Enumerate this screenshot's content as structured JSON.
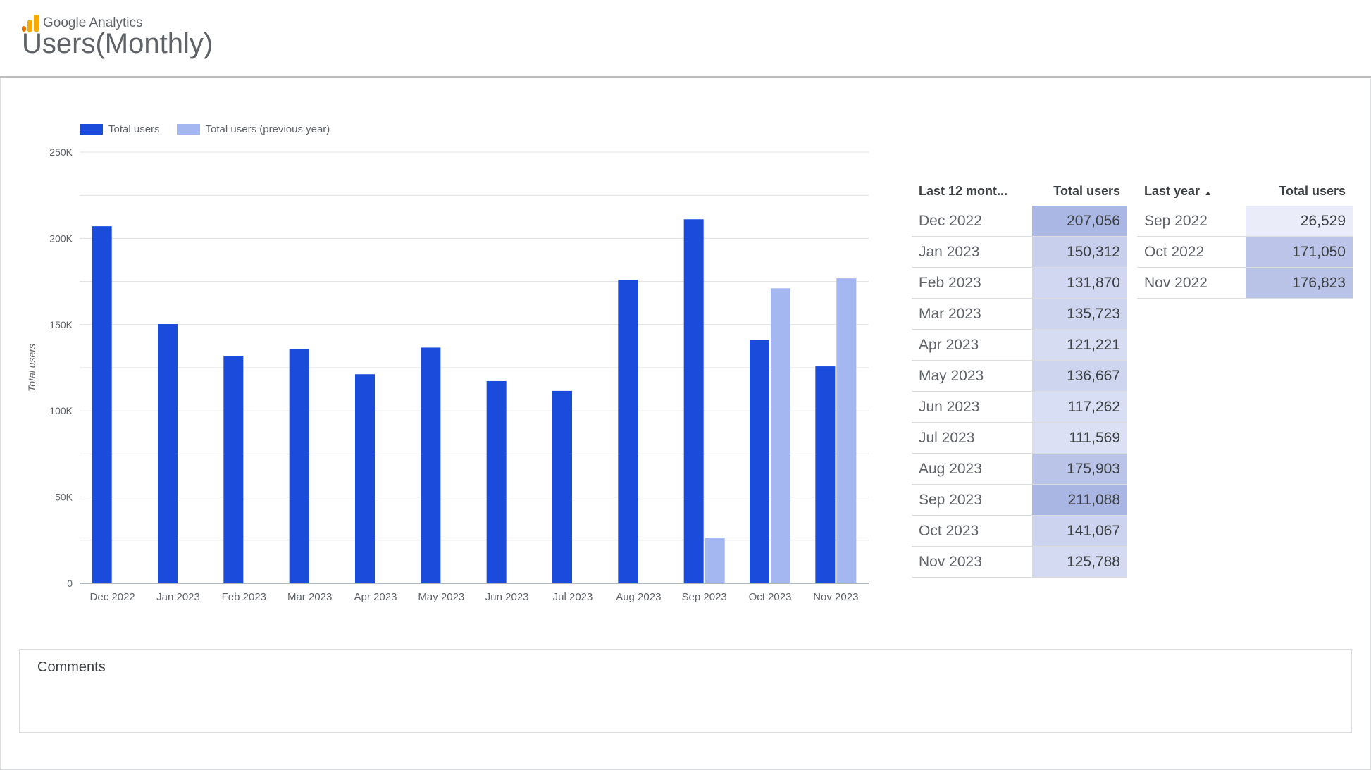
{
  "header": {
    "brand": "Google Analytics",
    "title": "Users(Monthly)"
  },
  "chart_data": {
    "type": "bar",
    "categories": [
      "Dec 2022",
      "Jan 2023",
      "Feb 2023",
      "Mar 2023",
      "Apr 2023",
      "May 2023",
      "Jun 2023",
      "Jul 2023",
      "Aug 2023",
      "Sep 2023",
      "Oct 2023",
      "Nov 2023"
    ],
    "series": [
      {
        "name": "Total users",
        "color": "#1a4bdb",
        "values": [
          207056,
          150312,
          131870,
          135723,
          121221,
          136667,
          117262,
          111569,
          175903,
          211088,
          141067,
          125788
        ]
      },
      {
        "name": "Total users (previous year)",
        "color": "#a4b7f0",
        "values": [
          null,
          null,
          null,
          null,
          null,
          null,
          null,
          null,
          null,
          26529,
          171050,
          176823
        ]
      }
    ],
    "ylabel": "Total users",
    "ylim": [
      0,
      250000
    ],
    "yticks": [
      {
        "value": 0,
        "label": "0"
      },
      {
        "value": 50000,
        "label": "50K"
      },
      {
        "value": 100000,
        "label": "100K"
      },
      {
        "value": 150000,
        "label": "150K"
      },
      {
        "value": 200000,
        "label": "200K"
      },
      {
        "value": 250000,
        "label": "250K"
      }
    ],
    "grid": true,
    "legend": "top-left"
  },
  "table_current": {
    "headers": [
      "Last 12 mont...",
      "Total users"
    ],
    "rows": [
      {
        "month": "Dec 2022",
        "value": "207,056",
        "intensity": 0.93
      },
      {
        "month": "Jan 2023",
        "value": "150,312",
        "intensity": 0.55
      },
      {
        "month": "Feb 2023",
        "value": "131,870",
        "intensity": 0.42
      },
      {
        "month": "Mar 2023",
        "value": "135,723",
        "intensity": 0.45
      },
      {
        "month": "Apr 2023",
        "value": "121,221",
        "intensity": 0.35
      },
      {
        "month": "May 2023",
        "value": "136,667",
        "intensity": 0.45
      },
      {
        "month": "Jun 2023",
        "value": "117,262",
        "intensity": 0.32
      },
      {
        "month": "Jul 2023",
        "value": "111,569",
        "intensity": 0.28
      },
      {
        "month": "Aug 2023",
        "value": "175,903",
        "intensity": 0.72
      },
      {
        "month": "Sep 2023",
        "value": "211,088",
        "intensity": 0.95
      },
      {
        "month": "Oct 2023",
        "value": "141,067",
        "intensity": 0.49
      },
      {
        "month": "Nov 2023",
        "value": "125,788",
        "intensity": 0.38
      }
    ]
  },
  "table_previous": {
    "headers": [
      "Last year",
      "Total users"
    ],
    "sort_icon": "sort-ascending-icon",
    "rows": [
      {
        "month": "Sep 2022",
        "value": "26,529",
        "intensity": 0.08
      },
      {
        "month": "Oct 2022",
        "value": "171,050",
        "intensity": 0.7
      },
      {
        "month": "Nov 2022",
        "value": "176,823",
        "intensity": 0.74
      }
    ]
  },
  "comments": {
    "title": "Comments"
  }
}
